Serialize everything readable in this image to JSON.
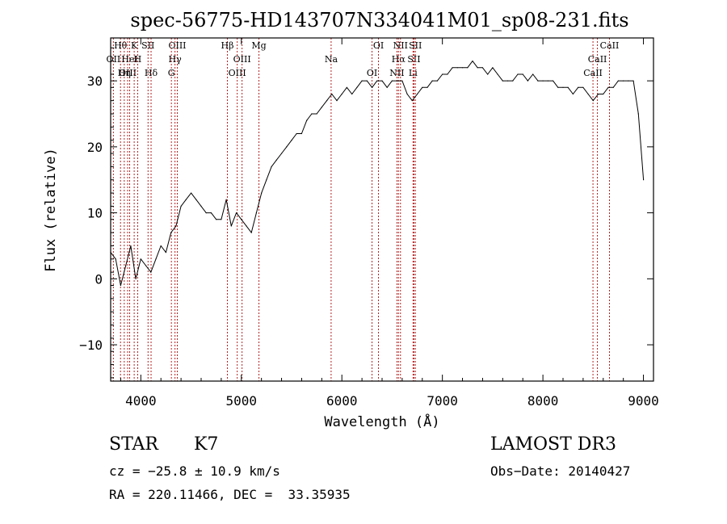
{
  "colors": {
    "background": "#ffffff",
    "foreground": "#000000",
    "line_marker": "#b22222"
  },
  "chart_data": {
    "type": "line",
    "title": "spec-56775-HD143707N334041M01_sp08-231.fits",
    "xlabel": "Wavelength (Å)",
    "ylabel": "Flux (relative)",
    "xlim": [
      3700,
      9100
    ],
    "ylim": [
      -15.5,
      36.5
    ],
    "x_ticks": [
      4000,
      5000,
      6000,
      7000,
      8000,
      9000
    ],
    "x_tick_labels": [
      "4000",
      "5000",
      "6000",
      "7000",
      "8000",
      "9000"
    ],
    "y_ticks": [
      -10,
      0,
      10,
      20,
      30
    ],
    "y_tick_labels": [
      "−10",
      "0",
      "10",
      "20",
      "30"
    ],
    "series": [
      {
        "name": "spectrum",
        "x": [
          3700,
          3750,
          3800,
          3850,
          3900,
          3950,
          4000,
          4050,
          4100,
          4150,
          4200,
          4250,
          4300,
          4350,
          4400,
          4450,
          4500,
          4550,
          4600,
          4650,
          4700,
          4750,
          4800,
          4850,
          4900,
          4950,
          5000,
          5050,
          5100,
          5150,
          5200,
          5250,
          5300,
          5350,
          5400,
          5450,
          5500,
          5550,
          5600,
          5650,
          5700,
          5750,
          5800,
          5850,
          5900,
          5950,
          6000,
          6050,
          6100,
          6150,
          6200,
          6250,
          6300,
          6350,
          6400,
          6450,
          6500,
          6550,
          6600,
          6650,
          6700,
          6750,
          6800,
          6850,
          6900,
          6950,
          7000,
          7050,
          7100,
          7150,
          7200,
          7250,
          7300,
          7350,
          7400,
          7450,
          7500,
          7550,
          7600,
          7650,
          7700,
          7750,
          7800,
          7850,
          7900,
          7950,
          8000,
          8050,
          8100,
          8150,
          8200,
          8250,
          8300,
          8350,
          8400,
          8450,
          8500,
          8550,
          8600,
          8650,
          8700,
          8750,
          8800,
          8850,
          8900,
          8950,
          9000
        ],
        "y": [
          4,
          3,
          -1,
          2,
          5,
          0,
          3,
          2,
          1,
          3,
          5,
          4,
          7,
          8,
          11,
          12,
          13,
          12,
          11,
          10,
          10,
          9,
          9,
          12,
          8,
          10,
          9,
          8,
          7,
          10,
          13,
          15,
          17,
          18,
          19,
          20,
          21,
          22,
          22,
          24,
          25,
          25,
          26,
          27,
          28,
          27,
          28,
          29,
          28,
          29,
          30,
          30,
          29,
          30,
          30,
          29,
          30,
          30,
          30,
          28,
          27,
          28,
          29,
          29,
          30,
          30,
          31,
          31,
          32,
          32,
          32,
          32,
          33,
          32,
          32,
          31,
          32,
          31,
          30,
          30,
          30,
          31,
          31,
          30,
          31,
          30,
          30,
          30,
          30,
          29,
          29,
          29,
          28,
          29,
          29,
          28,
          27,
          28,
          28,
          29,
          29,
          30,
          30,
          30,
          30,
          25,
          15
        ]
      }
    ],
    "spectral_lines": [
      {
        "label": "Hθ",
        "x": 3798
      },
      {
        "label": "OII",
        "x": 3727
      },
      {
        "label": "OIII",
        "x": 3869
      },
      {
        "label": "K",
        "x": 3934
      },
      {
        "label": "HeI",
        "x": 3889
      },
      {
        "label": "Hη",
        "x": 3835
      },
      {
        "label": "SII",
        "x": 4072
      },
      {
        "label": "H",
        "x": 3969
      },
      {
        "label": "Hδ",
        "x": 4102
      },
      {
        "label": "OIII",
        "x": 4363
      },
      {
        "label": "Hγ",
        "x": 4340
      },
      {
        "label": "G",
        "x": 4304
      },
      {
        "label": "Hβ",
        "x": 4861
      },
      {
        "label": "OIII",
        "x": 5007
      },
      {
        "label": "OIII",
        "x": 4959
      },
      {
        "label": "Mg",
        "x": 5175
      },
      {
        "label": "Na",
        "x": 5893
      },
      {
        "label": "OI",
        "x": 6300
      },
      {
        "label": "OI",
        "x": 6364
      },
      {
        "label": "Hα",
        "x": 6563
      },
      {
        "label": "NII",
        "x": 6548
      },
      {
        "label": "NII",
        "x": 6583
      },
      {
        "label": "SII",
        "x": 6717
      },
      {
        "label": "Li",
        "x": 6708
      },
      {
        "label": "SII",
        "x": 6731
      },
      {
        "label": "CaII",
        "x": 8542
      },
      {
        "label": "CaII",
        "x": 8498
      },
      {
        "label": "CaII",
        "x": 8662
      }
    ]
  },
  "info": {
    "object_class": "STAR",
    "subclass": "K7",
    "survey": "LAMOST DR3",
    "cz": "cz = −25.8 ± 10.9 km/s",
    "obs_date": "Obs−Date: 20140427",
    "coords": "RA = 220.11466, DEC =  33.35935"
  }
}
